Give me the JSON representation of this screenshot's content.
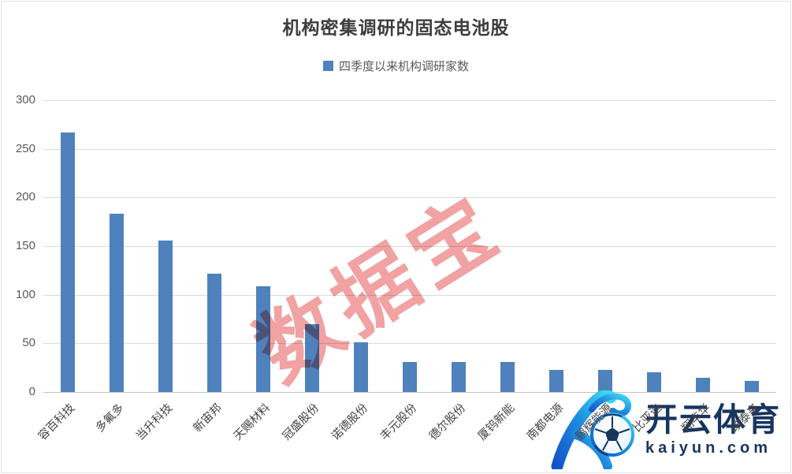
{
  "chart_data": {
    "type": "bar",
    "title": "机构密集调研的固态电池股",
    "legend_label": "四季度以来机构调研家数",
    "categories": [
      "容百科技",
      "多氟多",
      "当升科技",
      "新宙邦",
      "天赐材料",
      "冠盛股份",
      "诺德股份",
      "丰元股份",
      "德尔股份",
      "厦钨新能",
      "南都电源",
      "鹏辉能源",
      "比亚迪",
      "翔丰华",
      "璞泰来"
    ],
    "values": [
      267,
      183,
      156,
      122,
      109,
      70,
      51,
      31,
      31,
      31,
      23,
      23,
      20,
      15,
      11
    ],
    "xlabel": "",
    "ylabel": "",
    "ylim": [
      0,
      300
    ],
    "yticks": [
      0,
      50,
      100,
      150,
      200,
      250,
      300
    ],
    "grid": true,
    "legend_position": "top-center",
    "bar_color": "#4f81bd",
    "categories_partially_obscured_by_logo": [
      "鹏辉能源",
      "比亚迪",
      "翔丰华",
      "璞泰来"
    ]
  },
  "watermark": {
    "text": "数据宝",
    "color": "#f09a9a"
  },
  "logo": {
    "cn": "开云体育",
    "domain": "kaiyun.com",
    "navy": "#16355f",
    "gradient_start": "#3fd9f2",
    "gradient_end": "#1253c9"
  }
}
